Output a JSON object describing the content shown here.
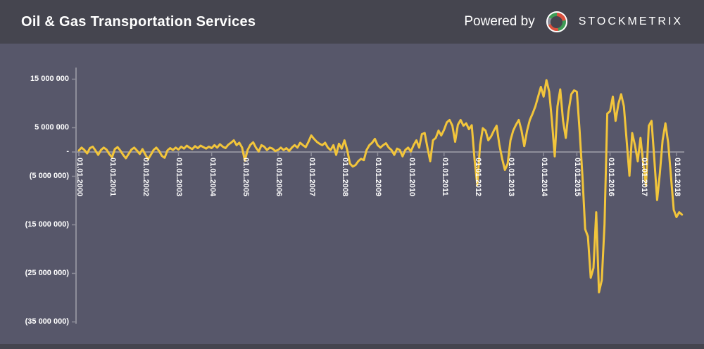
{
  "header": {
    "title": "Oil & Gas Transportation Services",
    "powered_by": "Powered by",
    "brand": "STOCKMETRIX"
  },
  "colors": {
    "background": "#57576A",
    "header_background": "#45454F",
    "line": "#F2C53B",
    "axis": "#8E8E9A",
    "text": "#FFFFFF",
    "logo_red": "#D9503E",
    "logo_green": "#3E9B55"
  },
  "chart_data": {
    "type": "line",
    "title": "Oil & Gas Transportation Services",
    "frequency": "monthly",
    "x_start": "01.01.2000",
    "x_ticks": [
      "01.01.2000",
      "01.01.2001",
      "01.01.2002",
      "01.01.2003",
      "01.01.2004",
      "01.01.2005",
      "01.01.2006",
      "01.01.2007",
      "01.01.2008",
      "01.01.2009",
      "01.01.2010",
      "01.01.2011",
      "01.01.2012",
      "01.01.2013",
      "01.01.2014",
      "01.01.2015",
      "01.01.2016",
      "01.01.2017",
      "01.01.2018"
    ],
    "y_ticks": [
      {
        "label": "15 000 000",
        "value_millions": 15
      },
      {
        "label": "5 000 000",
        "value_millions": 5
      },
      {
        "label": "-",
        "value_millions": 0
      },
      {
        "label": "(5 000 000)",
        "value_millions": -5
      },
      {
        "label": "(15 000 000)",
        "value_millions": -15
      },
      {
        "label": "(25 000 000)",
        "value_millions": -25
      },
      {
        "label": "(35 000 000)",
        "value_millions": -35
      }
    ],
    "ylim_millions": [
      -35,
      16
    ],
    "grid": false,
    "legend": "none",
    "values_unit": "millions",
    "values_in_millions": [
      0.3,
      0.9,
      0.4,
      -0.3,
      0.8,
      1.1,
      0.3,
      -0.6,
      0.4,
      0.9,
      0.5,
      -0.4,
      -1.1,
      0.6,
      1.0,
      0.3,
      -0.6,
      -1.3,
      -0.4,
      0.5,
      0.9,
      0.3,
      -0.4,
      0.6,
      -0.5,
      -1.5,
      -0.6,
      0.4,
      0.9,
      0.2,
      -0.8,
      -1.2,
      0.3,
      0.8,
      0.4,
      0.9,
      0.5,
      1.1,
      0.7,
      1.3,
      0.9,
      0.6,
      1.2,
      0.8,
      1.3,
      1.0,
      0.7,
      1.1,
      0.8,
      1.4,
      0.9,
      1.6,
      1.1,
      0.8,
      1.5,
      1.9,
      2.4,
      1.4,
      1.9,
      0.9,
      -1.8,
      0.4,
      1.5,
      2.0,
      0.9,
      0.1,
      1.4,
      1.1,
      0.4,
      0.9,
      0.7,
      0.2,
      0.4,
      0.9,
      0.4,
      0.8,
      0.2,
      0.9,
      1.4,
      0.9,
      1.9,
      1.4,
      1.0,
      2.1,
      3.4,
      2.7,
      2.1,
      1.7,
      1.4,
      1.9,
      0.9,
      0.4,
      1.4,
      -0.6,
      1.7,
      0.7,
      2.4,
      0.4,
      -2.4,
      -3.0,
      -2.7,
      -1.9,
      -1.4,
      -1.7,
      0.4,
      1.4,
      1.9,
      2.7,
      1.4,
      0.9,
      1.4,
      1.8,
      0.9,
      0.4,
      -0.6,
      0.7,
      0.4,
      -0.9,
      0.4,
      0.9,
      0.1,
      1.4,
      2.4,
      0.9,
      3.7,
      3.9,
      0.9,
      -1.9,
      2.4,
      2.9,
      4.4,
      3.4,
      4.6,
      6.1,
      6.6,
      5.4,
      2.1,
      5.6,
      6.6,
      5.4,
      5.9,
      4.7,
      5.5,
      -1.4,
      -6.8,
      1.4,
      4.9,
      4.4,
      2.4,
      3.2,
      4.4,
      5.4,
      1.4,
      -1.4,
      -3.7,
      -2.4,
      2.4,
      4.4,
      5.6,
      6.6,
      4.4,
      1.2,
      4.4,
      6.6,
      7.9,
      9.4,
      11.4,
      13.4,
      11.4,
      14.8,
      12.4,
      6.4,
      -0.9,
      9.4,
      12.9,
      6.4,
      2.9,
      8.4,
      11.9,
      12.7,
      12.4,
      4.4,
      -4.9,
      -15.9,
      -17.4,
      -25.9,
      -23.9,
      -12.4,
      -28.9,
      -26.4,
      -14.9,
      7.9,
      8.4,
      11.4,
      6.4,
      9.9,
      11.9,
      9.4,
      2.4,
      -4.9,
      3.9,
      1.4,
      -1.9,
      2.9,
      -2.4,
      -6.9,
      5.4,
      6.4,
      -1.4,
      -9.9,
      -4.4,
      2.4,
      5.9,
      1.9,
      -4.9,
      -11.9,
      -13.4,
      -12.4,
      -12.9
    ]
  }
}
